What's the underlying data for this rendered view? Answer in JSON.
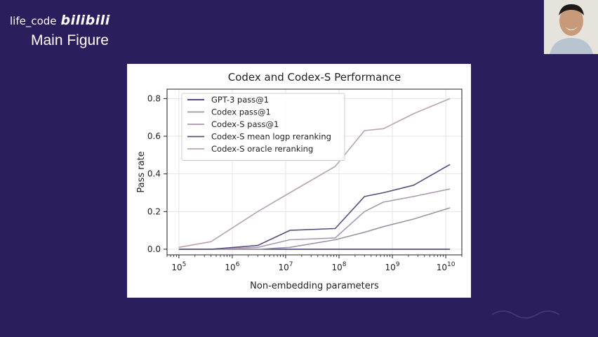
{
  "watermark": {
    "user": "life_code",
    "site": "bilibili"
  },
  "slide": {
    "title": "Main Figure"
  },
  "chart_data": {
    "type": "line",
    "title": "Codex and Codex-S Performance",
    "xlabel": "Non-embedding parameters",
    "ylabel": "Pass rate",
    "xscale": "log",
    "xlim": [
      60000,
      20000000000
    ],
    "ylim": [
      -0.03,
      0.85
    ],
    "xticks": [
      {
        "value": 100000,
        "base": "10",
        "exp": "5"
      },
      {
        "value": 1000000,
        "base": "10",
        "exp": "6"
      },
      {
        "value": 10000000,
        "base": "10",
        "exp": "7"
      },
      {
        "value": 100000000,
        "base": "10",
        "exp": "8"
      },
      {
        "value": 1000000000,
        "base": "10",
        "exp": "9"
      },
      {
        "value": 10000000000,
        "base": "10",
        "exp": "10"
      }
    ],
    "yticks": [
      {
        "value": 0.0,
        "label": "0.0"
      },
      {
        "value": 0.2,
        "label": "0.2"
      },
      {
        "value": 0.4,
        "label": "0.4"
      },
      {
        "value": 0.6,
        "label": "0.6"
      },
      {
        "value": 0.8,
        "label": "0.8"
      }
    ],
    "grid": true,
    "legend_position": "top-left",
    "series": [
      {
        "name": "GPT-3 pass@1",
        "color": "#3b3272",
        "x": [
          100000,
          400000,
          3000000,
          12000000,
          85000000,
          300000000,
          680000000,
          2500000000,
          12000000000
        ],
        "y": [
          0.0,
          0.0,
          0.0,
          0.0,
          0.0,
          0.0,
          0.0,
          0.0,
          0.0
        ]
      },
      {
        "name": "Codex pass@1",
        "color": "#9e93a6",
        "x": [
          100000,
          400000,
          3000000,
          12000000,
          85000000,
          300000000,
          680000000,
          2500000000,
          12000000000
        ],
        "y": [
          0.0,
          0.0,
          0.0,
          0.01,
          0.05,
          0.09,
          0.12,
          0.16,
          0.22
        ]
      },
      {
        "name": "Codex-S pass@1",
        "color": "#a99aad",
        "x": [
          100000,
          400000,
          3000000,
          12000000,
          85000000,
          300000000,
          680000000,
          2500000000,
          12000000000
        ],
        "y": [
          0.0,
          0.0,
          0.01,
          0.05,
          0.06,
          0.2,
          0.25,
          0.28,
          0.32
        ]
      },
      {
        "name": "Codex-S mean logp reranking",
        "color": "#5a4d7e",
        "x": [
          100000,
          400000,
          3000000,
          12000000,
          85000000,
          300000000,
          680000000,
          2500000000,
          12000000000
        ],
        "y": [
          0.0,
          0.0,
          0.02,
          0.1,
          0.11,
          0.28,
          0.3,
          0.34,
          0.45
        ]
      },
      {
        "name": "Codex-S oracle reranking",
        "color": "#b8a2b6",
        "x": [
          100000,
          400000,
          3000000,
          12000000,
          85000000,
          300000000,
          680000000,
          2500000000,
          12000000000
        ],
        "y": [
          0.01,
          0.04,
          0.2,
          0.3,
          0.44,
          0.63,
          0.64,
          0.72,
          0.8
        ]
      }
    ]
  }
}
